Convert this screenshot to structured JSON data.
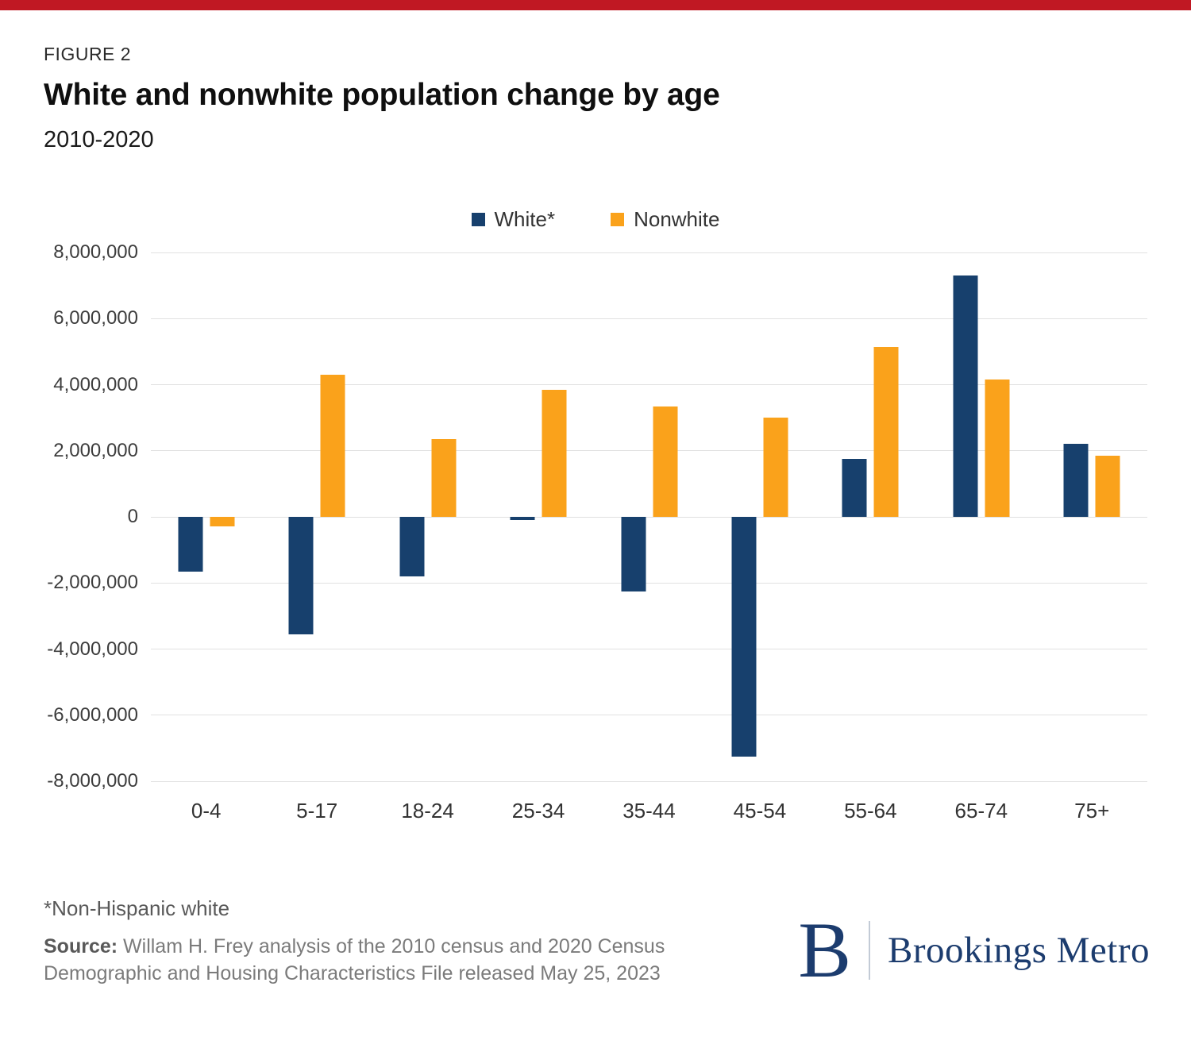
{
  "page": {
    "figure_label": "FIGURE 2",
    "title": "White and nonwhite population change by age",
    "subtitle": "2010-2020",
    "footnote": "*Non-Hispanic white",
    "source_label": "Source:",
    "source_text": "Willam H. Frey analysis of the 2010 census and 2020 Census Demographic and Housing Characteristics File released May 25, 2023",
    "logo": {
      "letter": "B",
      "wordmark": "Brookings Metro"
    },
    "colors": {
      "accent_bar": "#c01823",
      "navy": "#17406d",
      "orange": "#faa21b",
      "grid": "#e1e1e1",
      "logo_navy": "#1c3c6e"
    }
  },
  "chart_data": {
    "type": "bar",
    "title": "White and nonwhite population change by age",
    "subtitle": "2010-2020",
    "categories": [
      "0-4",
      "5-17",
      "18-24",
      "25-34",
      "35-44",
      "45-54",
      "55-64",
      "65-74",
      "75+"
    ],
    "series": [
      {
        "name": "White*",
        "color": "#17406d",
        "values": [
          -1650000,
          -3550000,
          -1800000,
          -100000,
          -2250000,
          -7250000,
          1750000,
          7300000,
          2200000
        ]
      },
      {
        "name": "Nonwhite",
        "color": "#faa21b",
        "values": [
          -300000,
          4300000,
          2350000,
          3850000,
          3350000,
          3000000,
          5150000,
          4150000,
          1850000
        ]
      }
    ],
    "ylim": [
      -8000000,
      8000000
    ],
    "ytick_step": 2000000,
    "ytick_labels": [
      "8,000,000",
      "6,000,000",
      "4,000,000",
      "2,000,000",
      "0",
      "-2,000,000",
      "-4,000,000",
      "-6,000,000",
      "-8,000,000"
    ],
    "grid": true,
    "legend_position": "top-center"
  }
}
